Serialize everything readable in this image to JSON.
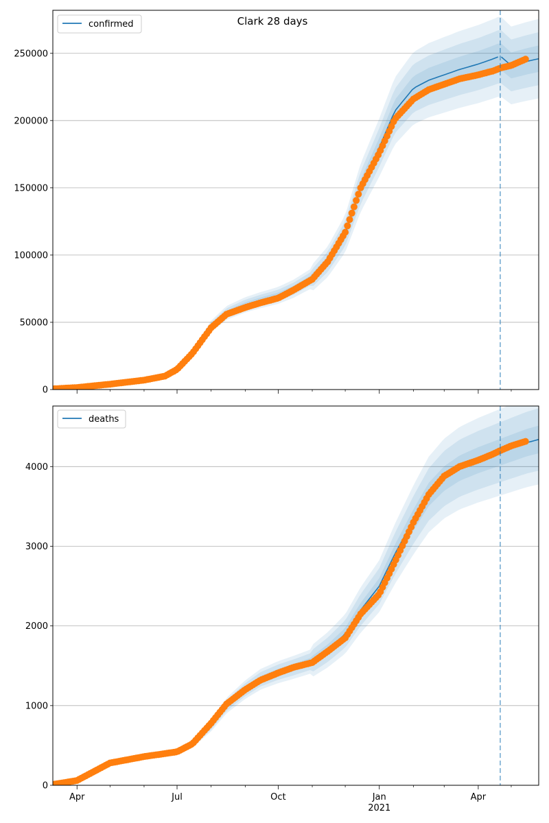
{
  "chart_data": [
    {
      "type": "line",
      "title": "Clark 28 days",
      "legend_label": "confirmed",
      "legend_position": "top-left",
      "grid": "y-major",
      "ylim": [
        0,
        282000
      ],
      "yticks": [
        0,
        50000,
        100000,
        150000,
        200000,
        250000
      ],
      "ytick_labels": [
        "0",
        "50000",
        "100000",
        "150000",
        "200000",
        "250000"
      ],
      "xlim": [
        "2020-03-10",
        "2021-05-26"
      ],
      "forecast_start": "2021-04-21",
      "model": {
        "x": [
          "2020-03-10",
          "2020-04-01",
          "2020-05-01",
          "2020-06-01",
          "2020-06-20",
          "2020-07-01",
          "2020-07-15",
          "2020-08-01",
          "2020-08-15",
          "2020-09-01",
          "2020-09-15",
          "2020-10-01",
          "2020-10-15",
          "2020-11-01",
          "2020-11-15",
          "2020-12-01",
          "2020-12-15",
          "2021-01-01",
          "2021-01-15",
          "2021-02-01",
          "2021-02-15",
          "2021-03-01",
          "2021-03-15",
          "2021-04-01",
          "2021-04-15",
          "2021-04-21",
          "2021-05-01",
          "2021-05-15",
          "2021-05-26"
        ],
        "y": [
          1000,
          1500,
          4000,
          7000,
          10000,
          15000,
          27000,
          47000,
          57000,
          63000,
          66500,
          70000,
          75000,
          83000,
          95000,
          116000,
          150000,
          180000,
          207000,
          224000,
          230000,
          234000,
          238000,
          242000,
          246000,
          248000,
          241000,
          244000,
          246000
        ],
        "band_widths": [
          0.04,
          0.08,
          0.12
        ]
      },
      "observed": {
        "x": [
          "2020-03-10",
          "2020-04-01",
          "2020-05-01",
          "2020-06-01",
          "2020-06-20",
          "2020-07-01",
          "2020-07-15",
          "2020-08-01",
          "2020-08-15",
          "2020-09-01",
          "2020-09-15",
          "2020-10-01",
          "2020-10-15",
          "2020-11-01",
          "2020-11-15",
          "2020-12-01",
          "2020-12-15",
          "2021-01-01",
          "2021-01-15",
          "2021-02-01",
          "2021-02-15",
          "2021-03-01",
          "2021-03-15",
          "2021-04-01",
          "2021-04-15",
          "2021-04-21",
          "2021-05-01",
          "2021-05-15"
        ],
        "y": [
          500,
          1500,
          4000,
          7000,
          10000,
          15000,
          27000,
          46000,
          56000,
          61000,
          64500,
          68000,
          74000,
          82000,
          95000,
          117000,
          150000,
          176000,
          201000,
          216000,
          223000,
          227000,
          231000,
          234000,
          237000,
          239000,
          241000,
          246000
        ]
      }
    },
    {
      "type": "line",
      "title": "",
      "legend_label": "deaths",
      "legend_position": "top-left",
      "grid": "y-major",
      "ylim": [
        0,
        4760
      ],
      "yticks": [
        0,
        1000,
        2000,
        3000,
        4000
      ],
      "ytick_labels": [
        "0",
        "1000",
        "2000",
        "3000",
        "4000"
      ],
      "xlim": [
        "2020-03-10",
        "2021-05-26"
      ],
      "forecast_start": "2021-04-21",
      "xticks": [
        "2020-04-01",
        "2020-07-01",
        "2020-10-01",
        "2021-01-01",
        "2021-04-01"
      ],
      "xtick_labels": [
        "Apr",
        "Jul",
        "Oct",
        "Jan",
        "Apr"
      ],
      "xtick_sublabels": [
        "",
        "",
        "",
        "2021",
        ""
      ],
      "model": {
        "x": [
          "2020-03-10",
          "2020-04-01",
          "2020-05-01",
          "2020-06-01",
          "2020-07-01",
          "2020-07-15",
          "2020-08-01",
          "2020-08-15",
          "2020-09-01",
          "2020-09-15",
          "2020-10-01",
          "2020-10-15",
          "2020-11-01",
          "2020-11-15",
          "2020-12-01",
          "2020-12-15",
          "2021-01-01",
          "2021-01-15",
          "2021-02-01",
          "2021-02-15",
          "2021-03-01",
          "2021-03-15",
          "2021-04-01",
          "2021-04-15",
          "2021-04-21",
          "2021-05-01",
          "2021-05-15",
          "2021-05-26"
        ],
        "y": [
          10,
          60,
          280,
          360,
          420,
          520,
          750,
          1000,
          1200,
          1330,
          1420,
          1480,
          1560,
          1700,
          1900,
          2200,
          2500,
          2900,
          3330,
          3650,
          3850,
          3980,
          4080,
          4150,
          4180,
          4230,
          4300,
          4340
        ],
        "band_widths": [
          0.04,
          0.09,
          0.13
        ]
      },
      "observed": {
        "x": [
          "2020-03-10",
          "2020-04-01",
          "2020-05-01",
          "2020-06-01",
          "2020-07-01",
          "2020-07-15",
          "2020-08-01",
          "2020-08-15",
          "2020-09-01",
          "2020-09-15",
          "2020-10-01",
          "2020-10-15",
          "2020-11-01",
          "2020-11-15",
          "2020-12-01",
          "2020-12-15",
          "2021-01-01",
          "2021-01-15",
          "2021-02-01",
          "2021-02-15",
          "2021-03-01",
          "2021-03-15",
          "2021-04-01",
          "2021-04-15",
          "2021-04-21",
          "2021-05-01",
          "2021-05-15"
        ],
        "y": [
          10,
          60,
          280,
          360,
          420,
          520,
          780,
          1020,
          1200,
          1320,
          1410,
          1480,
          1540,
          1680,
          1850,
          2150,
          2400,
          2800,
          3300,
          3650,
          3880,
          4000,
          4080,
          4160,
          4200,
          4260,
          4320
        ]
      }
    }
  ],
  "colors": {
    "model_line": "#1f77b4",
    "band": "#1f77b4",
    "observed": "#ff7f0e",
    "grid": "#b0b0b0",
    "forecast_marker": "#1f77b4"
  }
}
